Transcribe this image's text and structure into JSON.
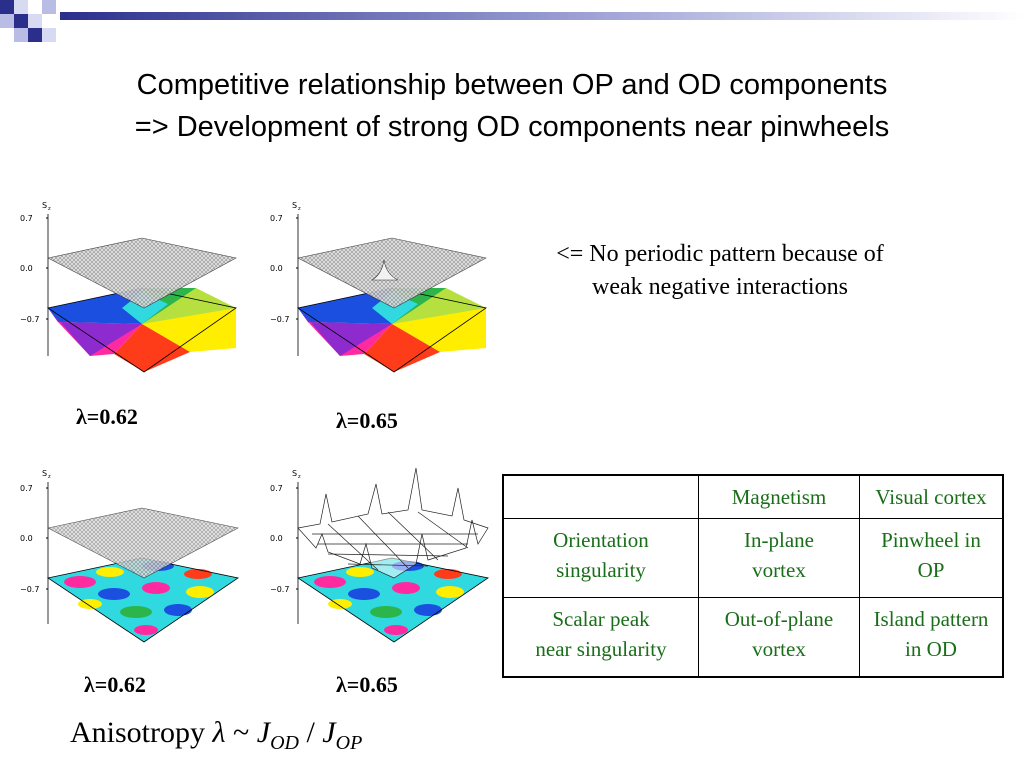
{
  "slide": {
    "title_line1": "Competitive relationship between OP and OD components",
    "title_line2": "=> Development of strong OD components near pinwheels"
  },
  "plots": [
    {
      "name": "plot-top-left",
      "lambda_label": "λ=0.62",
      "axis_label": "S",
      "axis_sub": "z",
      "ticks": [
        "0.7",
        "0.0",
        "−0.7"
      ],
      "surface": "flat",
      "pattern": "single-pinwheel"
    },
    {
      "name": "plot-top-right",
      "lambda_label": "λ=0.65",
      "axis_label": "S",
      "axis_sub": "z",
      "ticks": [
        "0.7",
        "0.0",
        "−0.7"
      ],
      "surface": "small-peak",
      "pattern": "single-pinwheel"
    },
    {
      "name": "plot-bottom-left",
      "lambda_label": "λ=0.62",
      "axis_label": "S",
      "axis_sub": "z",
      "ticks": [
        "0.7",
        "0.0",
        "−0.7"
      ],
      "surface": "flat",
      "pattern": "multi-pinwheel"
    },
    {
      "name": "plot-bottom-right",
      "lambda_label": "λ=0.65",
      "axis_label": "S",
      "axis_sub": "z",
      "ticks": [
        "0.7",
        "0.0",
        "−0.7"
      ],
      "surface": "peaked",
      "pattern": "multi-pinwheel"
    }
  ],
  "note": {
    "line1": "<= No periodic pattern because of",
    "line2": "weak negative interactions"
  },
  "table": {
    "header": [
      "",
      "Magnetism",
      "Visual cortex"
    ],
    "rows": [
      {
        "label_1": "Orientation",
        "label_2": "singularity",
        "mag_1": "In-plane",
        "mag_2": "vortex",
        "vc_1": "Pinwheel in",
        "vc_2": "OP"
      },
      {
        "label_1": "Scalar peak",
        "label_2": "near singularity",
        "mag_1": "Out-of-plane",
        "mag_2": "vortex",
        "vc_1": "Island pattern",
        "vc_2": "in OD"
      }
    ]
  },
  "formula": {
    "prefix": "Anisotropy ",
    "lambda": "λ",
    "tilde": " ~ ",
    "j1": "J",
    "sub1": "OD",
    "slash": " / ",
    "j2": "J",
    "sub2": "OP"
  },
  "colors": {
    "table_text": "#1a6e1a",
    "deco_blue": "#2b2f8c",
    "deco_light": "#b9bde6"
  }
}
